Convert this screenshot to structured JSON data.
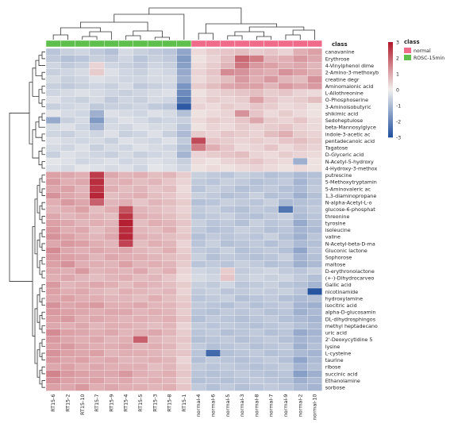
{
  "chart_data": {
    "type": "heatmap",
    "title": "",
    "xlabel": "",
    "ylabel": "",
    "columns": [
      "RT15-6",
      "RT15-2",
      "RT15-10",
      "RT15-7",
      "RT15-9",
      "RT15-4",
      "RT15-5",
      "RT15-3",
      "RT15-8",
      "RT15-1",
      "normal-4",
      "normal-6",
      "normal-5",
      "normal-3",
      "normal-8",
      "normal-7",
      "normal-9",
      "normal-2",
      "normal-10"
    ],
    "column_class": [
      "ROSC-15min",
      "ROSC-15min",
      "ROSC-15min",
      "ROSC-15min",
      "ROSC-15min",
      "ROSC-15min",
      "ROSC-15min",
      "ROSC-15min",
      "ROSC-15min",
      "ROSC-15min",
      "normal",
      "normal",
      "normal",
      "normal",
      "normal",
      "normal",
      "normal",
      "normal",
      "normal"
    ],
    "class_bar_label": "class",
    "class_legend": {
      "title": "class",
      "entries": [
        {
          "name": "normal",
          "color": "#f06a8a"
        },
        {
          "name": "ROSC-15min",
          "color": "#5fbf4c"
        }
      ]
    },
    "color_scale": {
      "min": -3,
      "max": 3,
      "ticks": [
        3,
        2,
        1,
        0,
        -1,
        -2,
        -3
      ],
      "low_color": "#1f4f9e",
      "mid_color": "#f2f0ee",
      "high_color": "#b2182b"
    },
    "rows": [
      "canavanine",
      "Erythrose",
      "4-Vinylphenol dime",
      "2-Amino-3-methoxyb",
      "creatine degr",
      "Aminomalonic acid",
      "L-Allothreonine",
      "O-Phosphoserine",
      "3-Aminoisobutyric",
      "shikimic acid",
      "Sedoheptulose",
      "beta-Mannosylglyce",
      "indole-3-acetic ac",
      "pentadecanoic acid",
      "Tagatose",
      "D-Glyceric acid",
      "N-Acetyl-5-hydroxy",
      "4-Hydroxy-3-methox",
      "putrescine",
      "5-Methoxytryptamin",
      "5-Aminovaleric ac",
      "1,3-diaminopropane",
      "N-alpha-Acetyl-L-o",
      "glucose-6-phosphat",
      "threonine",
      "tyrosine",
      "isoleucine",
      "valine",
      "N-Acetyl-beta-D-ma",
      "Gluconic lactone",
      "Sophorose",
      "maltose",
      "D-erythronolactone",
      "(+-)-Dihydrocarveo",
      "Gallic acid",
      "nicotinamide",
      "hydroxylamine",
      "isocitric acid",
      "alpha-D-glucosamin",
      "DL-dihydrosphingos",
      "methyl heptadecano",
      "uric acid",
      "2'-Deoxycytidine 5",
      "lysine",
      "L-cysteine",
      "taurine",
      "ribose",
      "succinic acid",
      "Ethanolamine",
      "sorbose"
    ],
    "values": [
      [
        -0.8,
        -0.6,
        -0.5,
        -0.7,
        -0.9,
        -0.4,
        -0.6,
        -0.7,
        -0.8,
        -1.4,
        0.3,
        0.5,
        0.6,
        0.7,
        0.5,
        0.6,
        0.4,
        0.9,
        1.1
      ],
      [
        -0.7,
        -0.9,
        -0.8,
        -0.6,
        -0.7,
        -0.5,
        -0.8,
        -0.6,
        -0.7,
        -1.6,
        0.2,
        0.4,
        0.7,
        1.9,
        1.6,
        0.8,
        0.9,
        1.2,
        1.0
      ],
      [
        -0.5,
        -0.7,
        -0.6,
        0.4,
        -0.5,
        -0.6,
        -0.7,
        -0.5,
        -0.6,
        -1.5,
        0.3,
        0.5,
        0.8,
        1.7,
        1.2,
        1.1,
        0.9,
        1.0,
        0.8
      ],
      [
        -0.6,
        -0.5,
        -0.4,
        0.5,
        -0.3,
        -0.5,
        -0.6,
        -0.4,
        -0.5,
        -1.3,
        0.4,
        0.6,
        1.4,
        1.3,
        1.0,
        0.9,
        1.3,
        1.1,
        0.9
      ],
      [
        -0.4,
        -0.6,
        -0.5,
        -0.3,
        -0.4,
        -0.5,
        -0.5,
        -0.4,
        -0.4,
        -1.2,
        0.3,
        0.5,
        0.7,
        1.2,
        0.9,
        1.2,
        0.8,
        0.7,
        1.3
      ],
      [
        -0.6,
        -0.7,
        -0.6,
        -0.5,
        -0.6,
        -0.4,
        -0.7,
        -0.6,
        -0.5,
        -1.7,
        0.5,
        0.7,
        1.0,
        1.1,
        1.1,
        0.8,
        1.2,
        1.0,
        1.2
      ],
      [
        -0.5,
        -0.4,
        -0.3,
        -0.4,
        -0.5,
        -0.6,
        -0.5,
        -0.4,
        -0.3,
        -1.9,
        0.2,
        0.4,
        0.5,
        0.6,
        0.7,
        0.5,
        0.6,
        0.4,
        0.3
      ],
      [
        -0.3,
        -0.5,
        -0.6,
        -0.4,
        -0.7,
        -0.5,
        -0.6,
        -0.4,
        -0.5,
        -2.1,
        0.3,
        0.5,
        0.4,
        0.5,
        1.1,
        0.6,
        0.4,
        0.5,
        0.7
      ],
      [
        -0.6,
        -0.5,
        -0.4,
        -0.7,
        -0.6,
        -0.6,
        -0.5,
        -0.7,
        -0.8,
        -2.8,
        0.4,
        0.3,
        0.5,
        0.4,
        0.6,
        0.5,
        0.3,
        0.4,
        0.2
      ],
      [
        -0.2,
        -0.4,
        -0.5,
        -1.2,
        -0.3,
        -0.4,
        -0.5,
        -0.3,
        -0.4,
        -0.9,
        0.2,
        0.3,
        0.4,
        1.3,
        0.6,
        0.3,
        0.5,
        0.3,
        0.2
      ],
      [
        -1.3,
        -0.6,
        -0.4,
        -1.6,
        -0.5,
        -0.3,
        -0.4,
        -0.6,
        -0.5,
        -0.6,
        0.3,
        0.5,
        0.4,
        0.6,
        1.0,
        0.5,
        0.4,
        0.6,
        0.3
      ],
      [
        -0.4,
        -0.3,
        -0.5,
        -1.1,
        -0.4,
        -0.5,
        -0.3,
        -0.4,
        -0.4,
        -0.8,
        0.2,
        0.4,
        0.3,
        0.5,
        0.4,
        0.5,
        0.6,
        0.4,
        0.3
      ],
      [
        -0.5,
        -0.6,
        -0.4,
        -0.5,
        -0.3,
        -0.6,
        -0.5,
        -0.3,
        -0.6,
        -1.0,
        0.5,
        0.4,
        0.6,
        0.5,
        0.4,
        0.7,
        0.9,
        0.5,
        0.4
      ],
      [
        -0.3,
        -0.4,
        -0.5,
        -0.4,
        -0.6,
        -0.3,
        -0.4,
        -0.5,
        -0.3,
        -0.7,
        2.3,
        0.6,
        0.5,
        0.4,
        0.5,
        0.4,
        0.6,
        0.7,
        0.5
      ],
      [
        -0.4,
        -0.5,
        -0.3,
        -0.6,
        -0.4,
        -0.5,
        -0.3,
        -0.4,
        -0.5,
        -0.9,
        1.6,
        0.9,
        0.6,
        0.3,
        0.4,
        0.6,
        0.3,
        0.5,
        0.4
      ],
      [
        -0.6,
        -0.3,
        -0.4,
        -0.5,
        -0.6,
        -0.4,
        -0.6,
        -0.5,
        -0.4,
        -1.1,
        0.4,
        0.5,
        0.6,
        0.7,
        0.4,
        0.3,
        0.5,
        0.4,
        0.3
      ],
      [
        -0.2,
        -0.3,
        -0.5,
        -0.4,
        -0.3,
        -0.5,
        -0.4,
        -0.3,
        -0.4,
        -0.6,
        0.3,
        0.2,
        0.4,
        0.5,
        0.6,
        0.4,
        0.3,
        -1.2,
        0.2
      ],
      [
        -0.3,
        -0.4,
        -0.2,
        -0.3,
        -0.4,
        -0.3,
        -0.5,
        -0.2,
        -0.3,
        -0.5,
        0.2,
        0.3,
        0.2,
        0.3,
        0.4,
        0.3,
        0.2,
        0.3,
        0.2
      ],
      [
        1.1,
        1.0,
        0.9,
        2.5,
        1.0,
        0.8,
        0.9,
        0.7,
        0.8,
        0.5,
        -0.6,
        -0.7,
        -0.8,
        -0.6,
        -0.7,
        -0.9,
        -0.8,
        -1.0,
        -0.9
      ],
      [
        1.2,
        0.9,
        1.0,
        2.7,
        0.8,
        0.9,
        0.7,
        0.8,
        0.6,
        0.4,
        -0.7,
        -0.8,
        -0.6,
        -0.7,
        -0.9,
        -0.8,
        -0.7,
        -1.1,
        -0.8
      ],
      [
        1.0,
        1.1,
        0.8,
        2.6,
        0.9,
        0.7,
        0.8,
        0.6,
        0.7,
        0.3,
        -0.8,
        -0.6,
        -0.7,
        -0.9,
        -0.8,
        -0.7,
        -0.9,
        -1.0,
        -0.7
      ],
      [
        1.3,
        1.0,
        0.9,
        2.8,
        0.7,
        0.8,
        0.9,
        0.7,
        0.6,
        0.4,
        -0.6,
        -0.7,
        -0.9,
        -0.8,
        -0.6,
        -0.9,
        -0.8,
        -1.2,
        -0.9
      ],
      [
        0.9,
        1.2,
        1.0,
        2.0,
        0.8,
        0.9,
        0.6,
        0.8,
        0.7,
        0.5,
        -0.9,
        -0.8,
        -0.6,
        -0.7,
        -0.8,
        -0.6,
        -1.0,
        -0.9,
        -0.8
      ],
      [
        0.8,
        0.9,
        1.1,
        0.7,
        0.9,
        2.2,
        0.8,
        0.7,
        0.6,
        0.4,
        -0.7,
        -0.6,
        -0.8,
        -0.9,
        -0.7,
        -0.8,
        -2.3,
        -0.9,
        -0.7
      ],
      [
        1.0,
        0.8,
        0.9,
        0.8,
        0.7,
        2.6,
        0.9,
        0.8,
        0.7,
        0.5,
        -0.8,
        -0.7,
        -0.6,
        -0.8,
        -0.9,
        -0.7,
        -0.6,
        -1.0,
        -0.8
      ],
      [
        1.1,
        1.0,
        0.8,
        0.9,
        0.8,
        2.9,
        0.7,
        0.9,
        0.8,
        0.6,
        -0.6,
        -0.8,
        -0.7,
        -0.9,
        -0.6,
        -0.8,
        -0.7,
        -1.3,
        -0.9
      ],
      [
        1.2,
        0.9,
        1.0,
        0.7,
        0.9,
        2.7,
        0.8,
        0.7,
        0.9,
        0.5,
        -0.7,
        -0.9,
        -0.8,
        -0.6,
        -0.7,
        -0.9,
        -0.8,
        -1.1,
        -1.0
      ],
      [
        1.3,
        1.1,
        0.9,
        0.8,
        1.0,
        2.8,
        0.9,
        0.8,
        0.7,
        0.6,
        -0.9,
        -0.7,
        -0.8,
        -0.7,
        -0.8,
        -0.6,
        -0.9,
        -1.2,
        -0.8
      ],
      [
        1.0,
        1.2,
        1.1,
        0.9,
        0.8,
        2.4,
        0.7,
        0.9,
        0.8,
        0.4,
        -0.8,
        -0.6,
        -0.9,
        -0.8,
        -0.7,
        -0.9,
        -0.7,
        -1.0,
        -0.9
      ],
      [
        1.4,
        1.0,
        0.9,
        1.0,
        0.9,
        1.0,
        0.8,
        0.7,
        0.9,
        0.5,
        -0.7,
        -0.8,
        -0.6,
        -0.9,
        -0.8,
        -0.7,
        -0.9,
        -1.4,
        -0.8
      ],
      [
        1.2,
        1.1,
        1.0,
        0.8,
        1.0,
        0.9,
        0.9,
        0.8,
        0.7,
        0.6,
        -0.6,
        -0.9,
        -0.7,
        -0.8,
        -0.9,
        -0.8,
        -0.6,
        -1.1,
        -0.9
      ],
      [
        1.1,
        1.3,
        0.9,
        0.9,
        0.8,
        1.1,
        0.8,
        0.9,
        0.8,
        0.5,
        -0.8,
        -0.7,
        -0.8,
        -0.6,
        -0.7,
        -0.9,
        -0.8,
        -1.2,
        -1.0
      ],
      [
        1.0,
        0.9,
        1.2,
        0.8,
        0.9,
        0.8,
        1.0,
        0.7,
        0.9,
        0.4,
        -0.5,
        -0.6,
        0.5,
        -0.7,
        -0.6,
        -0.5,
        -0.7,
        -0.8,
        -0.6
      ],
      [
        0.9,
        1.0,
        0.8,
        0.7,
        0.8,
        0.9,
        0.7,
        0.8,
        0.6,
        0.3,
        -0.4,
        -0.5,
        0.6,
        -0.6,
        -0.5,
        -0.6,
        -0.5,
        -0.7,
        -0.9
      ],
      [
        1.2,
        0.8,
        0.9,
        1.0,
        0.9,
        0.7,
        0.9,
        0.8,
        0.7,
        0.5,
        -0.6,
        -0.7,
        -0.5,
        -0.8,
        -0.7,
        -0.6,
        -0.8,
        -0.9,
        -1.1
      ],
      [
        1.1,
        0.9,
        1.0,
        0.8,
        0.7,
        0.9,
        0.8,
        0.7,
        0.8,
        0.4,
        -0.7,
        -0.6,
        -0.8,
        -0.7,
        -0.6,
        -0.7,
        -0.6,
        -0.8,
        -2.9
      ],
      [
        1.0,
        1.1,
        0.9,
        0.9,
        0.8,
        0.8,
        0.7,
        0.9,
        0.7,
        0.5,
        -0.8,
        -0.7,
        -0.6,
        -0.9,
        -0.8,
        -0.7,
        -0.9,
        -1.0,
        -0.9
      ],
      [
        1.3,
        1.0,
        1.1,
        1.2,
        0.9,
        0.9,
        1.0,
        0.8,
        0.8,
        0.6,
        -0.7,
        -0.8,
        -0.9,
        -0.7,
        -0.9,
        -0.8,
        -0.7,
        -1.1,
        -1.2
      ],
      [
        1.2,
        1.1,
        1.0,
        0.9,
        1.0,
        1.0,
        0.8,
        0.9,
        0.8,
        0.5,
        -0.8,
        -0.9,
        -0.7,
        -0.8,
        -0.7,
        -0.9,
        -0.8,
        -1.2,
        -1.0
      ],
      [
        1.1,
        1.2,
        0.9,
        1.0,
        0.9,
        0.8,
        0.9,
        0.8,
        0.9,
        0.6,
        -0.9,
        -0.7,
        -0.8,
        -0.9,
        -0.8,
        -0.7,
        -0.9,
        -1.0,
        -1.1
      ],
      [
        1.0,
        0.9,
        1.0,
        0.8,
        0.9,
        0.9,
        0.8,
        0.7,
        0.8,
        0.4,
        -0.7,
        -0.8,
        -0.7,
        -0.8,
        -0.9,
        -0.8,
        -0.7,
        -0.9,
        -1.0
      ],
      [
        1.4,
        1.1,
        1.0,
        0.9,
        1.0,
        0.8,
        0.9,
        1.0,
        0.8,
        0.5,
        -0.8,
        -0.7,
        -0.9,
        -0.8,
        -0.7,
        -0.9,
        -0.8,
        -1.3,
        -1.1
      ],
      [
        1.2,
        1.0,
        0.9,
        1.0,
        0.8,
        0.9,
        2.0,
        0.8,
        0.7,
        0.6,
        -0.9,
        -0.8,
        -0.7,
        -0.9,
        -0.8,
        -0.7,
        -0.9,
        -1.1,
        -1.0
      ],
      [
        1.1,
        1.2,
        1.0,
        0.9,
        0.9,
        1.0,
        0.8,
        0.9,
        0.8,
        0.5,
        -0.7,
        -0.9,
        -0.8,
        -0.7,
        -0.9,
        -0.8,
        -0.7,
        -1.2,
        -0.9
      ],
      [
        1.3,
        1.1,
        1.0,
        1.1,
        0.8,
        0.9,
        0.9,
        0.8,
        0.7,
        0.6,
        -0.8,
        -2.5,
        -0.9,
        -0.8,
        -0.7,
        -0.9,
        -0.8,
        -1.0,
        -1.1
      ],
      [
        1.2,
        1.0,
        1.1,
        0.9,
        1.0,
        0.8,
        0.8,
        0.9,
        0.8,
        0.4,
        -0.9,
        -0.7,
        -0.8,
        -0.9,
        -0.8,
        -0.7,
        -0.9,
        -1.4,
        -1.0
      ],
      [
        1.0,
        1.1,
        0.9,
        1.0,
        0.9,
        0.9,
        0.9,
        0.7,
        0.8,
        0.5,
        -0.7,
        -0.8,
        -0.7,
        -0.8,
        -0.9,
        -0.8,
        -0.7,
        -1.1,
        -0.9
      ],
      [
        1.5,
        1.2,
        1.1,
        1.0,
        1.0,
        1.2,
        0.9,
        0.8,
        0.9,
        0.6,
        -0.8,
        -0.9,
        -0.8,
        -0.7,
        -0.8,
        -0.9,
        -0.8,
        -1.5,
        -1.2
      ],
      [
        1.3,
        1.1,
        1.0,
        1.1,
        0.9,
        1.0,
        0.8,
        0.9,
        0.8,
        0.5,
        -0.9,
        -0.8,
        -0.9,
        -0.8,
        -0.7,
        -0.8,
        -0.9,
        -1.2,
        -1.0
      ],
      [
        1.1,
        1.0,
        1.2,
        0.9,
        1.0,
        0.9,
        0.9,
        0.8,
        0.9,
        0.6,
        -0.7,
        -0.9,
        -0.7,
        -0.9,
        -0.8,
        -0.7,
        -0.8,
        -1.0,
        -1.1
      ]
    ]
  }
}
